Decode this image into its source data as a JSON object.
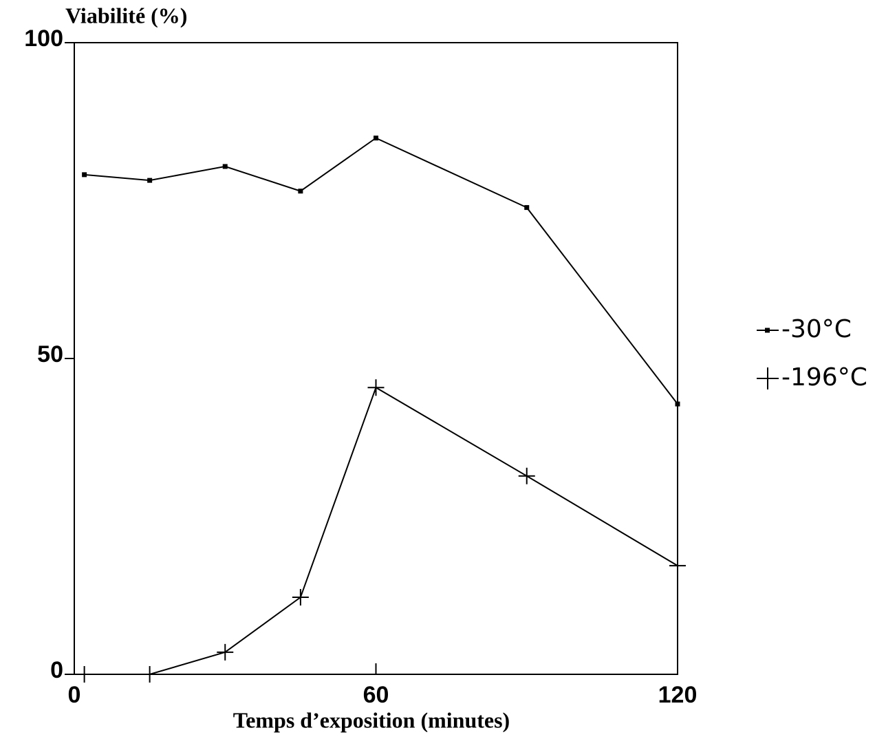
{
  "chart_data": {
    "type": "line",
    "y_label": "Viabilité (%)",
    "x_label": "Temps d’exposition (minutes)",
    "x": [
      2,
      15,
      30,
      45,
      60,
      90,
      120
    ],
    "series": [
      {
        "name": "-30°C",
        "color": "#000000",
        "marker": "square",
        "values": [
          79.1,
          78.2,
          80.4,
          76.5,
          84.9,
          73.9,
          42.8
        ]
      },
      {
        "name": "-196°C",
        "color": "#000000",
        "marker": "plus",
        "values": [
          0,
          0,
          3.5,
          12.2,
          45.4,
          31.4,
          17.2
        ]
      }
    ],
    "xlim": [
      0,
      120
    ],
    "xticks": [
      0,
      60,
      120
    ],
    "ylim": [
      0,
      100
    ],
    "yticks": [
      0,
      50,
      100
    ],
    "grid": false,
    "legend": "right"
  }
}
